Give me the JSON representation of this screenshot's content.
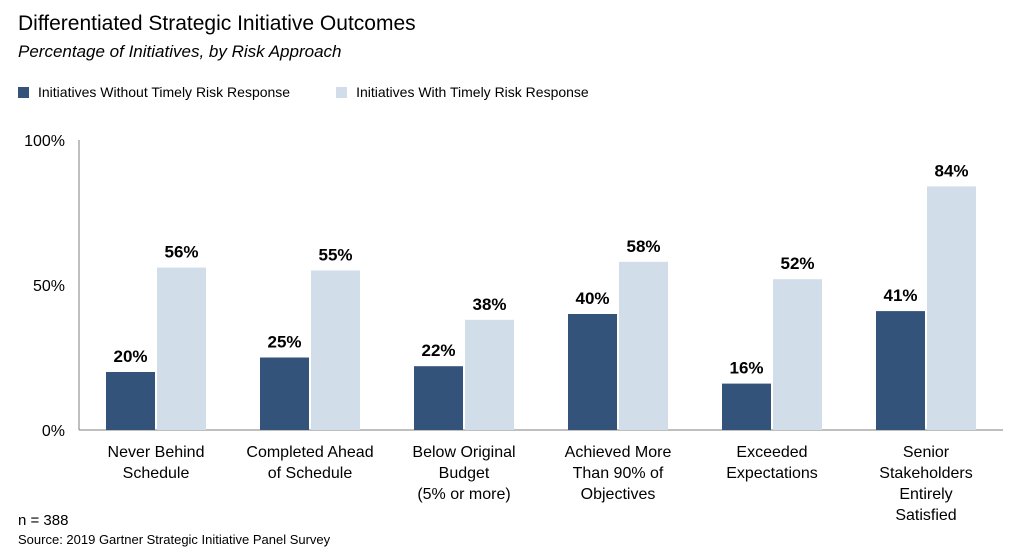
{
  "title": "Differentiated Strategic Initiative Outcomes",
  "subtitle": "Percentage of Initiatives, by Risk Approach",
  "legend": [
    {
      "label": "Initiatives Without Timely Risk Response",
      "color": "#34537a"
    },
    {
      "label": "Initiatives With Timely Risk Response",
      "color": "#d1dde9"
    }
  ],
  "footnote_n": "n = 388",
  "source": "Source: 2019 Gartner Strategic Initiative Panel Survey",
  "chart_data": {
    "type": "bar",
    "title": "Differentiated Strategic Initiative Outcomes",
    "subtitle": "Percentage of Initiatives, by Risk Approach",
    "categories": [
      [
        "Never Behind",
        "Schedule"
      ],
      [
        "Completed Ahead",
        "of Schedule"
      ],
      [
        "Below Original",
        "Budget",
        "(5% or more)"
      ],
      [
        "Achieved More",
        "Than 90% of",
        "Objectives"
      ],
      [
        "Exceeded",
        "Expectations"
      ],
      [
        "Senior",
        "Stakeholders",
        "Entirely",
        "Satisfied"
      ]
    ],
    "series": [
      {
        "name": "Initiatives Without Timely Risk Response",
        "color": "#34537a",
        "values": [
          20,
          25,
          22,
          40,
          16,
          41
        ]
      },
      {
        "name": "Initiatives With Timely Risk Response",
        "color": "#d1dde9",
        "values": [
          56,
          55,
          38,
          58,
          52,
          84
        ]
      }
    ],
    "y_ticks": [
      "0%",
      "50%",
      "100%"
    ],
    "y_tick_values": [
      0,
      50,
      100
    ],
    "ylim": [
      0,
      100
    ],
    "value_suffix": "%",
    "legend_position": "top-left",
    "grid": false
  }
}
